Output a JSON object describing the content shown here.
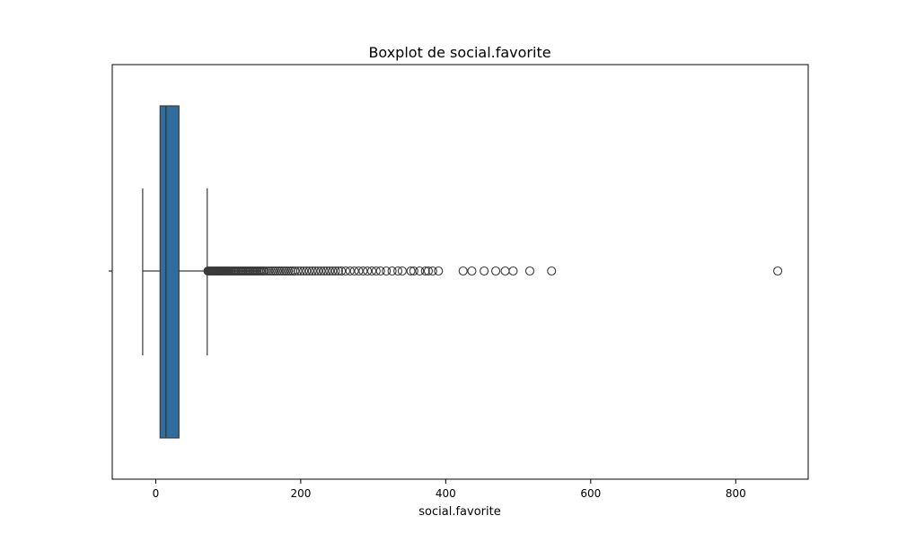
{
  "chart_data": {
    "type": "boxplot",
    "orientation": "horizontal",
    "title": "Boxplot de social.favorite",
    "xlabel": "social.favorite",
    "ylabel": "",
    "xlim": [
      -60,
      900
    ],
    "xticks": [
      0,
      200,
      400,
      600,
      800
    ],
    "grid": false,
    "box": {
      "whisker_low": -18,
      "q1": 6,
      "median": 14,
      "q3": 32,
      "whisker_high": 71,
      "fill_color": "#2e6d9e",
      "edge_color": "#3a3a3a"
    },
    "outliers": [
      72,
      73,
      74,
      75,
      76,
      77,
      78,
      79,
      80,
      81,
      82,
      83,
      84,
      85,
      86,
      87,
      88,
      89,
      90,
      91,
      92,
      93,
      94,
      95,
      96,
      97,
      98,
      99,
      100,
      102,
      104,
      106,
      108,
      110,
      112,
      114,
      116,
      118,
      120,
      122,
      124,
      126,
      128,
      130,
      132,
      134,
      136,
      138,
      140,
      142,
      144,
      146,
      148,
      150,
      153,
      156,
      159,
      162,
      165,
      168,
      171,
      174,
      177,
      180,
      183,
      186,
      189,
      192,
      196,
      200,
      204,
      208,
      212,
      216,
      220,
      224,
      228,
      232,
      236,
      240,
      244,
      248,
      252,
      256,
      262,
      268,
      274,
      280,
      286,
      292,
      298,
      304,
      310,
      318,
      326,
      334,
      340,
      352,
      356,
      364,
      372,
      376,
      382,
      390,
      424,
      436,
      453,
      469,
      482,
      493,
      516,
      546,
      858
    ]
  }
}
